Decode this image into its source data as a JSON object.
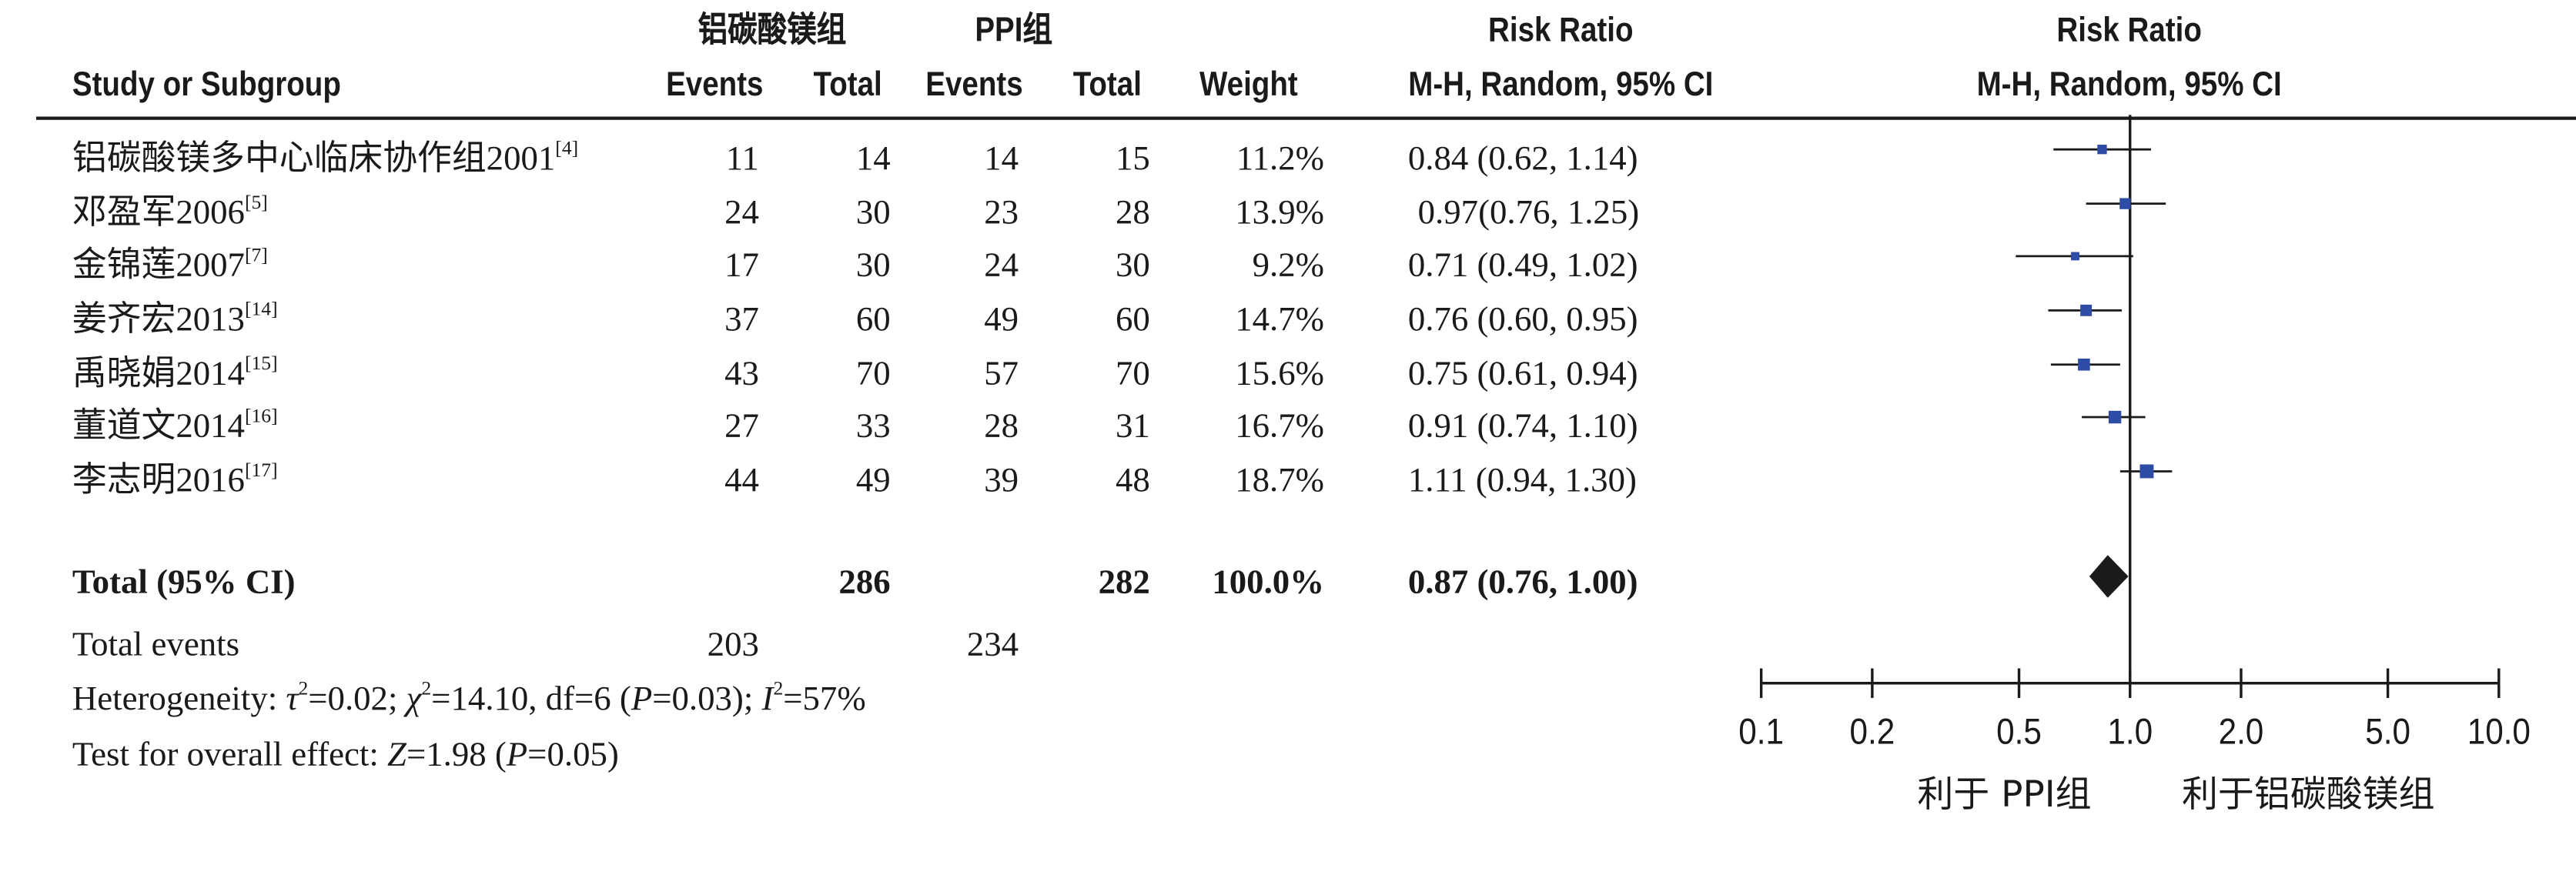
{
  "header": {
    "group1_name": "铝碳酸镁组",
    "group2_name": "PPI组",
    "risk_ratio": "Risk Ratio",
    "study_col": "Study or Subgroup",
    "events": "Events",
    "total": "Total",
    "weight": "Weight",
    "method": "M-H, Random, 95% CI"
  },
  "studies": [
    {
      "name": "铝碳酸镁多中心临床协作组2001",
      "ref": "[4]",
      "e1": "11",
      "t1": "14",
      "e2": "14",
      "t2": "15",
      "weight": "11.2%",
      "ci_text": "0.84 (0.62, 1.14)"
    },
    {
      "name": "邓盈军2006",
      "ref": "[5]",
      "e1": "24",
      "t1": "30",
      "e2": "23",
      "t2": "28",
      "weight": "13.9%",
      "ci_text": "0.97(0.76, 1.25)"
    },
    {
      "name": "金锦莲2007",
      "ref": "[7]",
      "e1": "17",
      "t1": "30",
      "e2": "24",
      "t2": "30",
      "weight": "9.2%",
      "ci_text": "0.71 (0.49, 1.02)"
    },
    {
      "name": "姜齐宏2013",
      "ref": "[14]",
      "e1": "37",
      "t1": "60",
      "e2": "49",
      "t2": "60",
      "weight": "14.7%",
      "ci_text": "0.76 (0.60, 0.95)"
    },
    {
      "name": "禹晓娟2014",
      "ref": "[15]",
      "e1": "43",
      "t1": "70",
      "e2": "57",
      "t2": "70",
      "weight": "15.6%",
      "ci_text": "0.75 (0.61, 0.94)"
    },
    {
      "name": "董道文2014",
      "ref": "[16]",
      "e1": "27",
      "t1": "33",
      "e2": "28",
      "t2": "31",
      "weight": "16.7%",
      "ci_text": "0.91 (0.74, 1.10)"
    },
    {
      "name": "李志明2016",
      "ref": "[17]",
      "e1": "44",
      "t1": "49",
      "e2": "39",
      "t2": "48",
      "weight": "18.7%",
      "ci_text": "1.11 (0.94, 1.30)"
    }
  ],
  "total": {
    "label": "Total (95% CI)",
    "t1": "286",
    "t2": "282",
    "weight": "100.0%",
    "ci_text": "0.87 (0.76, 1.00)"
  },
  "footer": {
    "events_label": "Total events",
    "events1": "203",
    "events2": "234",
    "heterogeneity_pre": "Heterogeneity: ",
    "tau": "τ",
    "het_a": "=0.02; ",
    "chi": "χ",
    "het_b": "=14.10, df=6 (",
    "p": "P",
    "het_c": "=0.03); ",
    "i": "I",
    "het_d": "=57%",
    "sq": "2",
    "overall_pre": "Test for overall effect: ",
    "z": "Z",
    "overall_a": "=1.98 (",
    "overall_b": "=0.05)"
  },
  "chart_data": {
    "type": "forest",
    "x_scale": "log",
    "xlim": [
      0.1,
      10.0
    ],
    "ticks": [
      0.1,
      0.2,
      0.5,
      1.0,
      2.0,
      5.0,
      10.0
    ],
    "tick_labels": [
      "0.1",
      "0.2",
      "0.5",
      "1.0",
      "2.0",
      "5.0",
      "10.0"
    ],
    "null_line": 1.0,
    "marker_color": "#2e4ba6",
    "favours_left": "利于 PPI组",
    "favours_right": "利于铝碳酸镁组",
    "points": [
      {
        "rr": 0.84,
        "lo": 0.62,
        "hi": 1.14
      },
      {
        "rr": 0.97,
        "lo": 0.76,
        "hi": 1.25
      },
      {
        "rr": 0.71,
        "lo": 0.49,
        "hi": 1.02
      },
      {
        "rr": 0.76,
        "lo": 0.6,
        "hi": 0.95
      },
      {
        "rr": 0.75,
        "lo": 0.61,
        "hi": 0.94
      },
      {
        "rr": 0.91,
        "lo": 0.74,
        "hi": 1.1
      },
      {
        "rr": 1.11,
        "lo": 0.94,
        "hi": 1.3
      }
    ],
    "pooled": {
      "rr": 0.87,
      "lo": 0.76,
      "hi": 1.0
    }
  }
}
